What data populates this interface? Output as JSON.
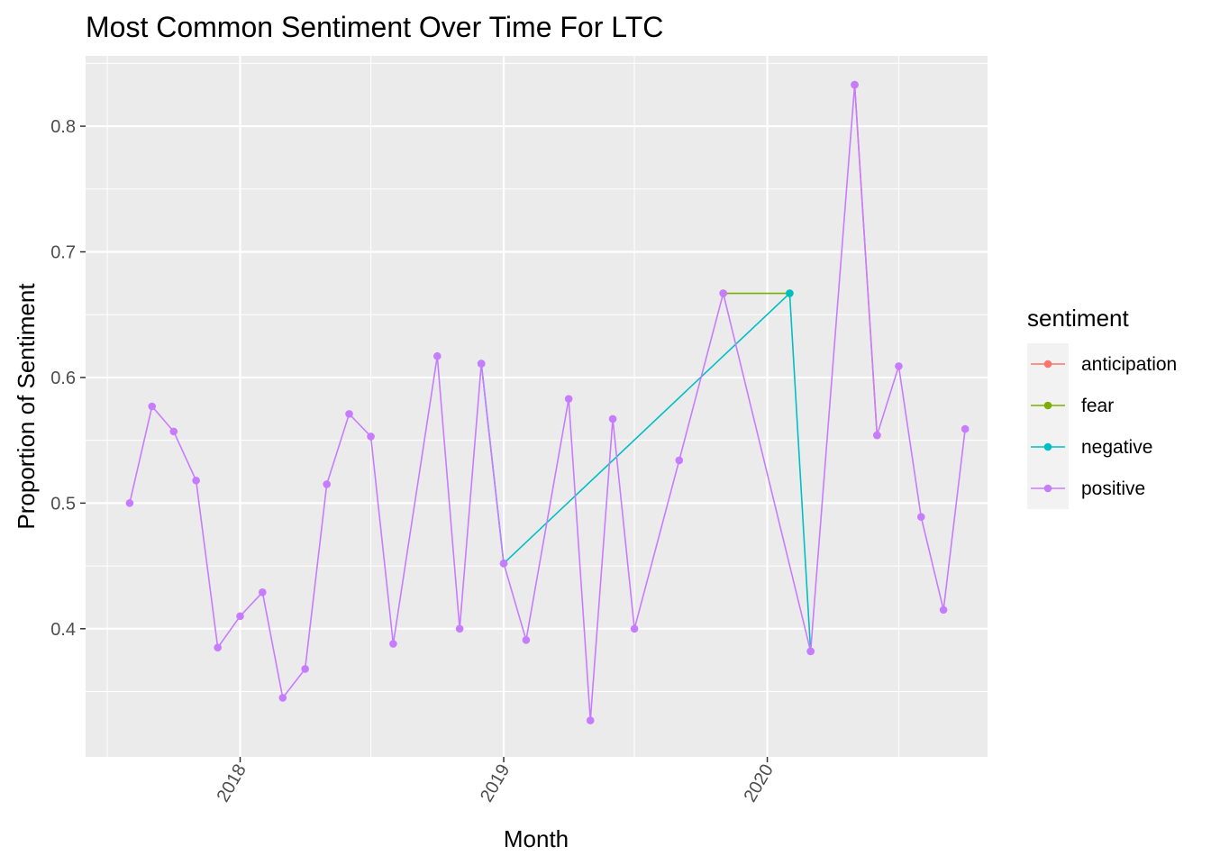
{
  "chart_data": {
    "type": "line",
    "title": "Most Common Sentiment Over Time For LTC",
    "xlabel": "Month",
    "ylabel": "Proportion of Sentiment",
    "x_ticks": [
      "2018",
      "2019",
      "2020"
    ],
    "y_ticks": [
      0.4,
      0.5,
      0.6,
      0.7,
      0.8
    ],
    "xlim": [
      "2017-06-01",
      "2020-11-01"
    ],
    "ylim": [
      0.298,
      0.856
    ],
    "grid": true,
    "legend_title": "sentiment",
    "legend_position": "right",
    "colors": {
      "anticipation": "#F8766D",
      "fear": "#7CAE00",
      "negative": "#00BFC4",
      "positive": "#C77CFF"
    },
    "series": [
      {
        "name": "anticipation",
        "points": [
          {
            "x": "2020-05-01",
            "y": 0.833
          },
          {
            "x": "2020-06-01",
            "y": 0.554
          }
        ]
      },
      {
        "name": "fear",
        "points": [
          {
            "x": "2019-11-01",
            "y": 0.667
          },
          {
            "x": "2020-02-01",
            "y": 0.667
          }
        ]
      },
      {
        "name": "negative",
        "points": [
          {
            "x": "2018-12-01",
            "y": 0.611
          },
          {
            "x": "2019-01-01",
            "y": 0.452
          },
          {
            "x": "2020-02-01",
            "y": 0.667
          },
          {
            "x": "2020-03-01",
            "y": 0.382
          }
        ]
      },
      {
        "name": "positive",
        "points": [
          {
            "x": "2017-08-01",
            "y": 0.5
          },
          {
            "x": "2017-09-01",
            "y": 0.577
          },
          {
            "x": "2017-10-01",
            "y": 0.557
          },
          {
            "x": "2017-11-01",
            "y": 0.518
          },
          {
            "x": "2017-12-01",
            "y": 0.385
          },
          {
            "x": "2018-01-01",
            "y": 0.41
          },
          {
            "x": "2018-02-01",
            "y": 0.429
          },
          {
            "x": "2018-03-01",
            "y": 0.345
          },
          {
            "x": "2018-04-01",
            "y": 0.368
          },
          {
            "x": "2018-05-01",
            "y": 0.515
          },
          {
            "x": "2018-06-01",
            "y": 0.571
          },
          {
            "x": "2018-07-01",
            "y": 0.553
          },
          {
            "x": "2018-08-01",
            "y": 0.388
          },
          {
            "x": "2018-10-01",
            "y": 0.617
          },
          {
            "x": "2018-11-01",
            "y": 0.4
          },
          {
            "x": "2018-12-01",
            "y": 0.611
          },
          {
            "x": "2019-01-01",
            "y": 0.452
          },
          {
            "x": "2019-02-01",
            "y": 0.391
          },
          {
            "x": "2019-04-01",
            "y": 0.583
          },
          {
            "x": "2019-05-01",
            "y": 0.327
          },
          {
            "x": "2019-06-01",
            "y": 0.567
          },
          {
            "x": "2019-07-01",
            "y": 0.4
          },
          {
            "x": "2019-09-01",
            "y": 0.534
          },
          {
            "x": "2019-11-01",
            "y": 0.667
          },
          {
            "x": "2020-03-01",
            "y": 0.382
          },
          {
            "x": "2020-05-01",
            "y": 0.833
          },
          {
            "x": "2020-06-01",
            "y": 0.554
          },
          {
            "x": "2020-07-01",
            "y": 0.609
          },
          {
            "x": "2020-08-01",
            "y": 0.489
          },
          {
            "x": "2020-09-01",
            "y": 0.415
          },
          {
            "x": "2020-10-01",
            "y": 0.559
          }
        ]
      }
    ]
  }
}
